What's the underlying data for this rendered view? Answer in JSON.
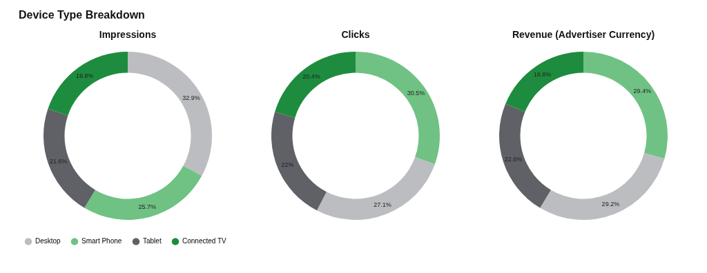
{
  "chart_data": [
    {
      "type": "donut",
      "title": "Impressions",
      "annotations": [
        "Device Type Breakdown"
      ],
      "categories": [
        "Desktop",
        "Smart Phone",
        "Tablet",
        "Connected TV"
      ],
      "values": [
        32.9,
        25.7,
        21.6,
        19.8
      ],
      "value_labels": [
        "32.9%",
        "25.7%",
        "21.6%",
        "19.8%"
      ],
      "colors": [
        "#bcbdc1",
        "#6fc283",
        "#5f6166",
        "#1e8c3e"
      ],
      "legend": "bottom"
    },
    {
      "type": "donut",
      "title": "Clicks",
      "categories": [
        null,
        null,
        null,
        null
      ],
      "values": [
        30.5,
        27.1,
        22,
        20.4
      ],
      "value_labels": [
        "30.5%",
        "27.1%",
        "22%",
        "20.4%"
      ],
      "colors": [
        "#6fc283",
        "#bcbdc1",
        "#5f6166",
        "#1e8c3e"
      ]
    },
    {
      "type": "donut",
      "title": "Revenue (Advertiser Currency)",
      "categories": [
        null,
        null,
        null,
        null
      ],
      "values": [
        29.4,
        29.2,
        22.6,
        18.8
      ],
      "value_labels": [
        "29.4%",
        "29.2%",
        "22.6%",
        "18.8%"
      ],
      "colors": [
        "#6fc283",
        "#bcbdc1",
        "#5f6166",
        "#1e8c3e"
      ]
    }
  ]
}
